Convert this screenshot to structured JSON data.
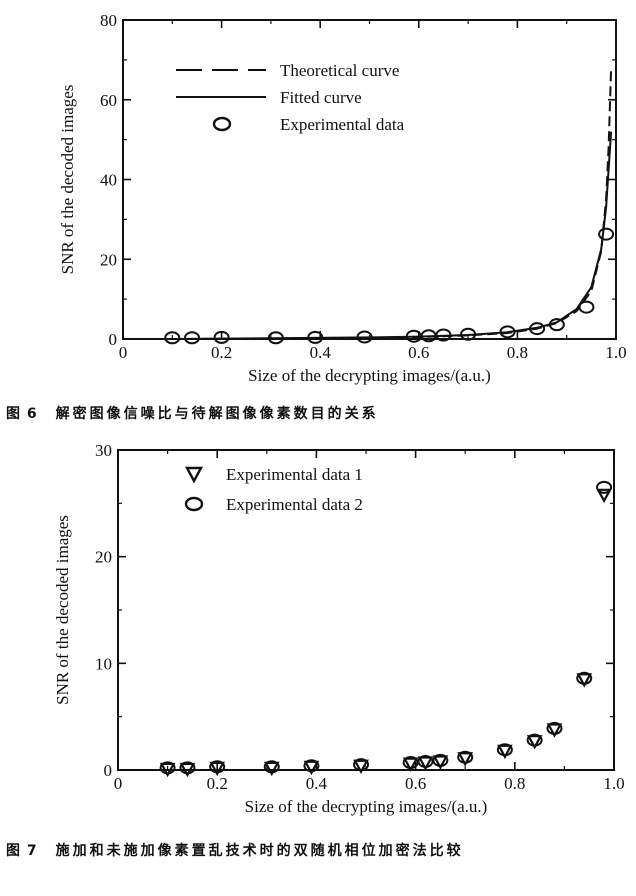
{
  "chart_data": [
    {
      "type": "line",
      "xlabel": "Size of the decrypting images/(a.u.)",
      "ylabel": "SNR of the decoded images",
      "xlim": [
        0,
        1.0
      ],
      "ylim": [
        0,
        80
      ],
      "x_ticks": [
        "0",
        "0.2",
        "0.4",
        "0.6",
        "0.8",
        "1.0"
      ],
      "y_ticks": [
        "0",
        "20",
        "40",
        "60",
        "80"
      ],
      "legend_position": "top-left",
      "caption_num": "图 6",
      "caption_text": "解密图像信噪比与待解图像像素数目的关系",
      "series": [
        {
          "name": "Theoretical curve",
          "style": "dashed",
          "x": [
            0.1,
            0.3,
            0.5,
            0.6,
            0.7,
            0.78,
            0.84,
            0.88,
            0.92,
            0.95,
            0.97,
            0.98,
            0.985,
            0.99
          ],
          "y": [
            0.0,
            0.1,
            0.3,
            0.5,
            0.9,
            1.5,
            2.6,
            4.0,
            7.0,
            12.0,
            22.0,
            35.0,
            48.0,
            68.0
          ]
        },
        {
          "name": "Fitted curve",
          "style": "solid",
          "x": [
            0.1,
            0.3,
            0.5,
            0.6,
            0.7,
            0.78,
            0.84,
            0.88,
            0.92,
            0.95,
            0.97,
            0.98,
            0.99
          ],
          "y": [
            0.0,
            0.2,
            0.4,
            0.6,
            1.0,
            1.7,
            2.8,
            4.2,
            7.5,
            13.0,
            22.5,
            33.0,
            52.0
          ]
        },
        {
          "name": "Experimental data",
          "style": "circle",
          "x": [
            0.1,
            0.14,
            0.2,
            0.31,
            0.39,
            0.49,
            0.59,
            0.62,
            0.65,
            0.7,
            0.78,
            0.84,
            0.88,
            0.94,
            0.98
          ],
          "y": [
            0.3,
            0.3,
            0.4,
            0.3,
            0.4,
            0.5,
            0.7,
            0.8,
            1.0,
            1.2,
            1.8,
            2.6,
            3.6,
            8.0,
            26.3
          ]
        }
      ]
    },
    {
      "type": "scatter",
      "xlabel": "Size of the decrypting images/(a.u.)",
      "ylabel": "SNR of the decoded images",
      "xlim": [
        0,
        1.0
      ],
      "ylim": [
        0,
        30
      ],
      "x_ticks": [
        "0",
        "0.2",
        "0.4",
        "0.6",
        "0.8",
        "1.0"
      ],
      "y_ticks": [
        "0",
        "10",
        "20",
        "30"
      ],
      "legend_position": "top-left",
      "caption_num": "图 7",
      "caption_text": "施加和未施加像素置乱技术时的双随机相位加密法比较",
      "series": [
        {
          "name": "Experimental data 1",
          "style": "triangle-down",
          "x": [
            0.1,
            0.14,
            0.2,
            0.31,
            0.39,
            0.49,
            0.59,
            0.62,
            0.65,
            0.7,
            0.78,
            0.84,
            0.88,
            0.94,
            0.98
          ],
          "y": [
            0.1,
            0.1,
            0.2,
            0.2,
            0.3,
            0.4,
            0.6,
            0.7,
            0.8,
            1.1,
            1.8,
            2.7,
            3.8,
            8.5,
            25.8
          ]
        },
        {
          "name": "Experimental data 2",
          "style": "circle",
          "x": [
            0.1,
            0.14,
            0.2,
            0.31,
            0.39,
            0.49,
            0.59,
            0.62,
            0.65,
            0.7,
            0.78,
            0.84,
            0.88,
            0.94,
            0.98
          ],
          "y": [
            0.2,
            0.2,
            0.3,
            0.3,
            0.4,
            0.5,
            0.7,
            0.8,
            0.9,
            1.2,
            1.9,
            2.8,
            3.9,
            8.6,
            26.5
          ]
        }
      ]
    }
  ]
}
